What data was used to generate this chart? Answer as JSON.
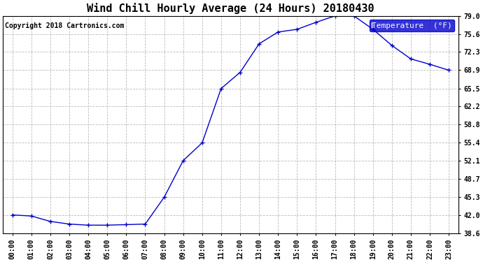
{
  "title": "Wind Chill Hourly Average (24 Hours) 20180430",
  "copyright": "Copyright 2018 Cartronics.com",
  "legend_label": "Temperature  (°F)",
  "x_labels": [
    "00:00",
    "01:00",
    "02:00",
    "03:00",
    "04:00",
    "05:00",
    "06:00",
    "07:00",
    "08:00",
    "09:00",
    "10:00",
    "11:00",
    "12:00",
    "13:00",
    "14:00",
    "15:00",
    "16:00",
    "17:00",
    "18:00",
    "19:00",
    "20:00",
    "21:00",
    "22:00",
    "23:00"
  ],
  "y_values": [
    42.0,
    41.8,
    40.8,
    40.3,
    40.1,
    40.1,
    40.2,
    40.3,
    45.3,
    52.1,
    55.4,
    65.5,
    68.5,
    73.8,
    76.0,
    76.5,
    77.8,
    79.0,
    79.0,
    76.5,
    73.5,
    71.0,
    70.0,
    68.9
  ],
  "ylim_min": 38.6,
  "ylim_max": 79.0,
  "yticks": [
    38.6,
    42.0,
    45.3,
    48.7,
    52.1,
    55.4,
    58.8,
    62.2,
    65.5,
    68.9,
    72.3,
    75.6,
    79.0
  ],
  "ytick_labels": [
    "38.6",
    "42.0",
    "45.3",
    "48.7",
    "52.1",
    "55.4",
    "58.8",
    "62.2",
    "65.5",
    "68.9",
    "72.3",
    "75.6",
    "79.0"
  ],
  "line_color": "#0000cc",
  "marker": "+",
  "background_color": "#ffffff",
  "plot_bg_color": "#ffffff",
  "grid_color": "#aaaaaa",
  "title_fontsize": 11,
  "copyright_fontsize": 7,
  "legend_fontsize": 8,
  "tick_fontsize": 7,
  "legend_bg_color": "#0000cc",
  "legend_text_color": "#ffffff",
  "fig_width": 6.9,
  "fig_height": 3.75,
  "dpi": 100
}
